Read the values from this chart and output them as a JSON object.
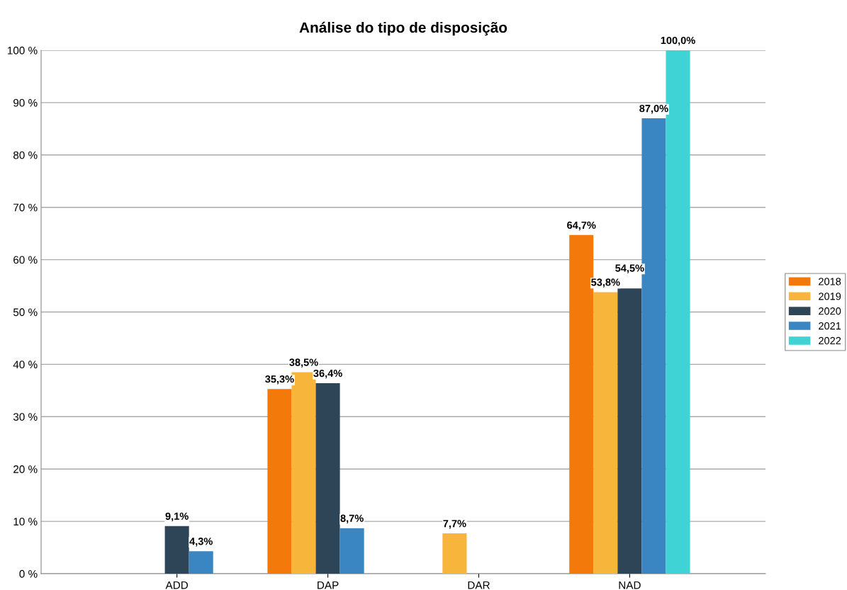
{
  "chart_data": {
    "type": "bar",
    "title": "Análise do tipo de disposição",
    "categories": [
      "ADD",
      "DAP",
      "DAR",
      "NAD"
    ],
    "series": [
      {
        "name": "2018",
        "color": "#f4790b",
        "values": [
          null,
          35.3,
          null,
          64.7
        ],
        "value_labels": [
          null,
          "35,3%",
          null,
          "64,7%"
        ]
      },
      {
        "name": "2019",
        "color": "#f7b53b",
        "values": [
          null,
          38.5,
          7.7,
          53.8
        ],
        "value_labels": [
          null,
          "38,5%",
          "7,7%",
          "53,8%"
        ]
      },
      {
        "name": "2020",
        "color": "#2e4557",
        "values": [
          9.1,
          36.4,
          null,
          54.5
        ],
        "value_labels": [
          "9,1%",
          "36,4%",
          null,
          "54,5%"
        ]
      },
      {
        "name": "2021",
        "color": "#3a86c2",
        "values": [
          4.3,
          8.7,
          null,
          87.0
        ],
        "value_labels": [
          "4,3%",
          "8,7%",
          null,
          "87,0%"
        ]
      },
      {
        "name": "2022",
        "color": "#3fd3d6",
        "values": [
          null,
          null,
          null,
          100.0
        ],
        "value_labels": [
          null,
          null,
          null,
          "100,0%"
        ]
      }
    ],
    "ylim": [
      0,
      100
    ],
    "yticks": [
      {
        "value": 0,
        "label": "0 %"
      },
      {
        "value": 10,
        "label": "10 %"
      },
      {
        "value": 20,
        "label": "20 %"
      },
      {
        "value": 30,
        "label": "30 %"
      },
      {
        "value": 40,
        "label": "40 %"
      },
      {
        "value": 50,
        "label": "50 %"
      },
      {
        "value": 60,
        "label": "60 %"
      },
      {
        "value": 70,
        "label": "70 %"
      },
      {
        "value": 80,
        "label": "80 %"
      },
      {
        "value": 90,
        "label": "90 %"
      },
      {
        "value": 100,
        "label": "100 %"
      }
    ],
    "grid": "y",
    "legend": "right"
  }
}
